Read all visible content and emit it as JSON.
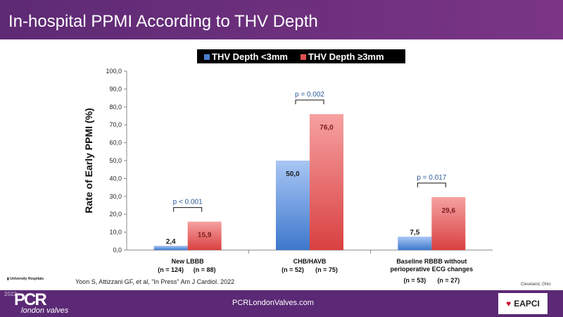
{
  "header": {
    "title": "In-hospital PPMI According to THV Depth"
  },
  "chart_data": {
    "type": "bar",
    "categories": [
      "New LBBB",
      "CHB/HAVB",
      "Baseline RBBB without perioperative ECG changes"
    ],
    "category_lines": [
      [
        "New LBBB"
      ],
      [
        "CHB/HAVB"
      ],
      [
        "Baseline RBBB without",
        "perioperative ECG changes"
      ]
    ],
    "series": [
      {
        "name": "THV Depth <3mm",
        "values": [
          2.4,
          50.0,
          7.5
        ],
        "labels": [
          "2,4",
          "50,0",
          "7,5"
        ],
        "n": [
          "(n = 124)",
          "(n = 52)",
          "(n = 53)"
        ],
        "color": "#4a80cf"
      },
      {
        "name": "THV Depth ≥3mm",
        "values": [
          15.9,
          76.0,
          29.6
        ],
        "labels": [
          "15,9",
          "76,0",
          "29,6"
        ],
        "n": [
          "(n = 88)",
          "(n = 75)",
          "(n = 27)"
        ],
        "color": "#e05050"
      }
    ],
    "pvalues": [
      "p < 0.001",
      "p = 0.002",
      "p = 0.017"
    ],
    "ylabel": "Rate of Early PPMI (%)",
    "ylim": [
      0,
      100
    ],
    "yticks": [
      "0,0",
      "10,0",
      "20,0",
      "30,0",
      "40,0",
      "50,0",
      "60,0",
      "70,0",
      "80,0",
      "90,0",
      "100,0"
    ]
  },
  "reference": "Yoon S, Attizzani GF, et al, \"In Press\" Am J Cardiol.  2022",
  "location": "Cleveland, Ohio",
  "institution": "University Hospitals",
  "footer": {
    "year": "2022",
    "brand": "PCR",
    "brand_sub": "london valves",
    "site": "PCRLondonValves.com",
    "partner": "EAPCI"
  }
}
